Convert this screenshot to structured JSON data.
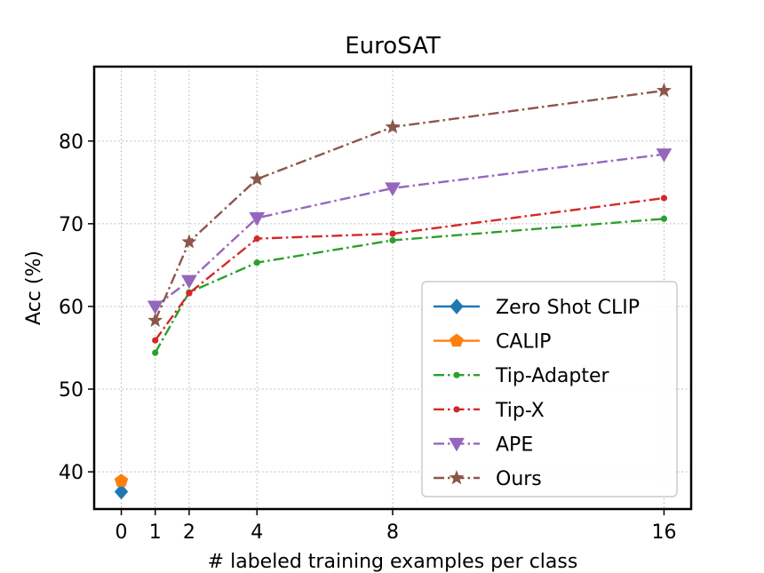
{
  "chart_data": {
    "type": "line",
    "title": "EuroSAT",
    "xlabel": "# labeled training examples per class",
    "ylabel": "Acc (%)",
    "xlim": [
      -0.8,
      16.8
    ],
    "ylim": [
      35.5,
      89
    ],
    "xticks": [
      0,
      1,
      2,
      4,
      8,
      16
    ],
    "yticks": [
      40,
      50,
      60,
      70,
      80
    ],
    "grid": true,
    "legend_position": "lower-right",
    "series": [
      {
        "name": "Zero Shot CLIP",
        "color": "#1f77b4",
        "marker": "diamond",
        "line_style": "solid",
        "x": [
          0
        ],
        "y": [
          37.6
        ]
      },
      {
        "name": "CALIP",
        "color": "#ff7f0e",
        "marker": "pentagon",
        "line_style": "solid",
        "x": [
          0
        ],
        "y": [
          38.9
        ]
      },
      {
        "name": "Tip-Adapter",
        "color": "#2ca02c",
        "marker": "dot",
        "line_style": "dashdot",
        "x": [
          1,
          2,
          4,
          8,
          16
        ],
        "y": [
          54.4,
          61.7,
          65.3,
          68.0,
          70.6
        ]
      },
      {
        "name": "Tip-X",
        "color": "#d62728",
        "marker": "dot",
        "line_style": "dashdot",
        "x": [
          1,
          2,
          4,
          8,
          16
        ],
        "y": [
          55.9,
          61.6,
          68.2,
          68.8,
          73.1
        ]
      },
      {
        "name": "APE",
        "color": "#9467bd",
        "marker": "triangle-down",
        "line_style": "dashdot",
        "x": [
          1,
          2,
          4,
          8,
          16
        ],
        "y": [
          60.0,
          63.1,
          70.7,
          74.3,
          78.4
        ]
      },
      {
        "name": "Ours",
        "color": "#8c564b",
        "marker": "star",
        "line_style": "dashdot",
        "x": [
          1,
          2,
          4,
          8,
          16
        ],
        "y": [
          58.3,
          67.8,
          75.4,
          81.7,
          86.1
        ]
      }
    ]
  }
}
